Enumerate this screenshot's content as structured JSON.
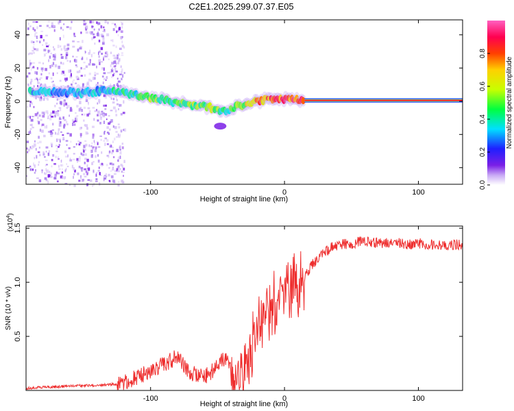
{
  "figure_title": "C2E1.2025.299.07.37.E05",
  "colors": {
    "snr_line": "#ee2d2d",
    "background": "#ffffff",
    "noise_purple": "#7a1fe6",
    "colormap": [
      "#ffffff",
      "#c8a8f5",
      "#7a1fe6",
      "#1f1fff",
      "#00e0ff",
      "#00ff40",
      "#c8ff00",
      "#ffd000",
      "#ff4000",
      "#ff0050",
      "#ff60c0"
    ]
  },
  "chart_data": [
    {
      "type": "heatmap",
      "title": "",
      "xlabel": "Height of straight line (km)",
      "ylabel": "Frequency (Hz)",
      "xlim": [
        -193,
        133
      ],
      "ylim": [
        -50,
        49
      ],
      "xticks": [
        -100,
        0,
        100
      ],
      "xtick_labels": [
        "-100",
        "0",
        "100"
      ],
      "yticks": [
        -40,
        -20,
        0,
        20,
        40
      ],
      "ytick_labels": [
        "-40",
        "-20",
        "0",
        "20",
        "40"
      ],
      "colorbar": {
        "label": "Normalized spectral amplitude",
        "ticks": [
          0.0,
          0.2,
          0.4,
          0.6,
          0.8
        ],
        "tick_labels": [
          "0.0",
          "0.2",
          "0.4",
          "0.6",
          "0.8"
        ],
        "range": [
          0,
          1
        ]
      },
      "ridge": {
        "x": [
          -190,
          -170,
          -150,
          -135,
          -120,
          -110,
          -100,
          -90,
          -80,
          -70,
          -60,
          -50,
          -45,
          -40,
          -35,
          -30,
          -25,
          -20,
          -15,
          -10,
          -5,
          0,
          5,
          10,
          15,
          133
        ],
        "freq": [
          6,
          5.5,
          5,
          6.5,
          5,
          4,
          2,
          1,
          -1,
          -2,
          -3,
          -5,
          -6,
          -5,
          -3,
          -2,
          -1,
          0,
          1,
          1.5,
          1,
          1,
          1.5,
          1,
          0.5,
          0.5
        ],
        "amplitude": [
          0.45,
          0.4,
          0.42,
          0.45,
          0.5,
          0.5,
          0.6,
          0.55,
          0.55,
          0.6,
          0.6,
          0.6,
          0.5,
          0.55,
          0.6,
          0.65,
          0.75,
          0.8,
          0.85,
          0.85,
          0.85,
          0.9,
          0.9,
          0.92,
          0.95,
          1.0
        ]
      },
      "noise_region_x": [
        -193,
        -120
      ],
      "secondary_blob": {
        "x": -48,
        "freq": -15
      }
    },
    {
      "type": "line",
      "title": "",
      "xlabel": "Height of straight line (km)",
      "ylabel": "SNR (10 * v/v)",
      "y_multiplier": "(x10",
      "y_multiplier_exponent": "4",
      "y_multiplier_close": ")",
      "xlim": [
        -193,
        133
      ],
      "ylim": [
        0,
        1.52
      ],
      "xticks": [
        -100,
        0,
        100
      ],
      "xtick_labels": [
        "-100",
        "0",
        "100"
      ],
      "yticks": [
        0.5,
        1.0,
        1.5
      ],
      "ytick_labels": [
        "0.5",
        "1.0",
        "1.5"
      ],
      "series": [
        {
          "name": "SNR",
          "x": [
            -193,
            -180,
            -160,
            -140,
            -125,
            -118,
            -110,
            -100,
            -95,
            -90,
            -85,
            -80,
            -75,
            -70,
            -65,
            -60,
            -55,
            -50,
            -45,
            -42,
            -38,
            -35,
            -30,
            -25,
            -20,
            -15,
            -10,
            -5,
            0,
            5,
            10,
            15,
            20,
            25,
            30,
            35,
            40,
            50,
            60,
            70,
            80,
            90,
            100,
            110,
            120,
            133
          ],
          "values": [
            0.02,
            0.03,
            0.04,
            0.05,
            0.06,
            0.08,
            0.12,
            0.18,
            0.22,
            0.25,
            0.28,
            0.3,
            0.22,
            0.17,
            0.15,
            0.14,
            0.16,
            0.22,
            0.3,
            0.28,
            0.1,
            0.05,
            0.2,
            0.4,
            0.55,
            0.7,
            0.75,
            0.85,
            0.9,
            0.95,
            1.0,
            1.05,
            1.15,
            1.22,
            1.28,
            1.32,
            1.35,
            1.36,
            1.38,
            1.36,
            1.37,
            1.35,
            1.36,
            1.35,
            1.34,
            1.35
          ]
        }
      ]
    }
  ]
}
